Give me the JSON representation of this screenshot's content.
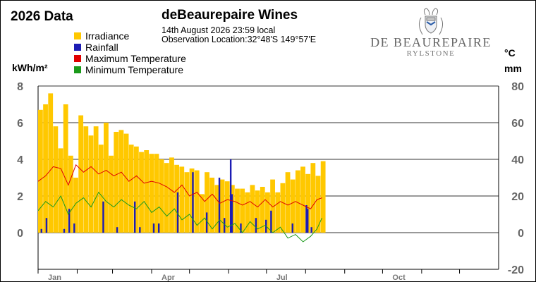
{
  "header": {
    "chart_title": "2026 Data",
    "station_name": "deBeaurepaire Wines",
    "observation_date": "14th August 2026  23:59 local",
    "observation_location": "Observation Location:32°48'S 149°57'E"
  },
  "logo": {
    "name": "DE BEAUREPAIRE",
    "sub": "RYLSTONE",
    "crest_icon": "crest-icon"
  },
  "legend": [
    {
      "label": "Irradiance",
      "color": "#ffc800"
    },
    {
      "label": "Rainfall",
      "color": "#1c1cb4"
    },
    {
      "label": "Maximum Temperature",
      "color": "#e00000"
    },
    {
      "label": "Minimum Temperature",
      "color": "#1a9a1a"
    }
  ],
  "units": {
    "left": "kWh/m²",
    "right_temp": "°C",
    "right_rain": "mm"
  },
  "chart_data": {
    "type": "bar",
    "title": "2026 Data",
    "x_axis": {
      "type": "date",
      "range": [
        "2026-01-01",
        "2026-12-31"
      ],
      "tick_labels": [
        "Jan",
        "Apr",
        "Jul",
        "Oct"
      ],
      "tick_dates": [
        "2026-01-01",
        "2026-04-01",
        "2026-07-01",
        "2026-10-01"
      ],
      "month_boundaries": [
        "2026-01-01",
        "2026-02-01",
        "2026-03-01",
        "2026-04-01",
        "2026-05-01",
        "2026-06-01",
        "2026-07-01",
        "2026-08-01",
        "2026-09-01",
        "2026-10-01",
        "2026-11-01",
        "2026-12-01"
      ]
    },
    "y_left": {
      "label": "kWh/m²",
      "range": [
        0,
        8
      ],
      "ticks": [
        0,
        2,
        4,
        6,
        8
      ]
    },
    "y_right": {
      "label": "°C / mm",
      "range": [
        -20,
        80
      ],
      "ticks": [
        -20,
        0,
        20,
        40,
        60,
        80
      ]
    },
    "grid": true,
    "legend_position": "top-left",
    "series": [
      {
        "name": "Irradiance",
        "type": "bar",
        "axis": "left",
        "color": "#ffc800",
        "points": [
          [
            "2026-01-01",
            6.7
          ],
          [
            "2026-01-05",
            7.0
          ],
          [
            "2026-01-09",
            7.6
          ],
          [
            "2026-01-13",
            5.8
          ],
          [
            "2026-01-17",
            4.6
          ],
          [
            "2026-01-21",
            7.0
          ],
          [
            "2026-01-25",
            4.2
          ],
          [
            "2026-01-29",
            3.0
          ],
          [
            "2026-02-02",
            6.4
          ],
          [
            "2026-02-06",
            5.8
          ],
          [
            "2026-02-10",
            5.3
          ],
          [
            "2026-02-14",
            5.8
          ],
          [
            "2026-02-18",
            4.8
          ],
          [
            "2026-02-22",
            6.0
          ],
          [
            "2026-02-26",
            4.2
          ],
          [
            "2026-03-02",
            5.5
          ],
          [
            "2026-03-06",
            5.6
          ],
          [
            "2026-03-10",
            5.4
          ],
          [
            "2026-03-14",
            4.8
          ],
          [
            "2026-03-18",
            4.7
          ],
          [
            "2026-03-22",
            4.4
          ],
          [
            "2026-03-26",
            4.5
          ],
          [
            "2026-03-30",
            4.3
          ],
          [
            "2026-04-03",
            4.3
          ],
          [
            "2026-04-07",
            4.0
          ],
          [
            "2026-04-11",
            3.8
          ],
          [
            "2026-04-15",
            4.1
          ],
          [
            "2026-04-19",
            3.7
          ],
          [
            "2026-04-23",
            3.6
          ],
          [
            "2026-04-27",
            3.3
          ],
          [
            "2026-05-01",
            3.5
          ],
          [
            "2026-05-05",
            3.4
          ],
          [
            "2026-05-09",
            2.1
          ],
          [
            "2026-05-13",
            3.3
          ],
          [
            "2026-05-17",
            3.0
          ],
          [
            "2026-05-21",
            2.6
          ],
          [
            "2026-05-25",
            2.9
          ],
          [
            "2026-05-29",
            2.8
          ],
          [
            "2026-06-02",
            2.6
          ],
          [
            "2026-06-06",
            2.4
          ],
          [
            "2026-06-10",
            2.4
          ],
          [
            "2026-06-14",
            2.2
          ],
          [
            "2026-06-18",
            2.6
          ],
          [
            "2026-06-22",
            2.3
          ],
          [
            "2026-06-26",
            2.5
          ],
          [
            "2026-06-30",
            2.2
          ],
          [
            "2026-07-04",
            2.9
          ],
          [
            "2026-07-08",
            2.2
          ],
          [
            "2026-07-12",
            2.7
          ],
          [
            "2026-07-16",
            3.3
          ],
          [
            "2026-07-20",
            2.9
          ],
          [
            "2026-07-24",
            3.4
          ],
          [
            "2026-07-28",
            3.6
          ],
          [
            "2026-08-01",
            3.2
          ],
          [
            "2026-08-05",
            3.8
          ],
          [
            "2026-08-09",
            3.1
          ],
          [
            "2026-08-13",
            3.9
          ]
        ]
      },
      {
        "name": "Rainfall",
        "type": "bar",
        "axis": "right",
        "color": "#1c1cb4",
        "points": [
          [
            "2026-01-03",
            2
          ],
          [
            "2026-01-07",
            8
          ],
          [
            "2026-01-21",
            2
          ],
          [
            "2026-01-25",
            13
          ],
          [
            "2026-01-29",
            5
          ],
          [
            "2026-02-21",
            17
          ],
          [
            "2026-03-04",
            3
          ],
          [
            "2026-03-18",
            17
          ],
          [
            "2026-03-22",
            3
          ],
          [
            "2026-04-02",
            5
          ],
          [
            "2026-04-06",
            5
          ],
          [
            "2026-04-21",
            22
          ],
          [
            "2026-05-03",
            33
          ],
          [
            "2026-05-14",
            11
          ],
          [
            "2026-05-24",
            30
          ],
          [
            "2026-05-28",
            8
          ],
          [
            "2026-06-02",
            40
          ],
          [
            "2026-06-03",
            21
          ],
          [
            "2026-06-10",
            5
          ],
          [
            "2026-06-22",
            8
          ],
          [
            "2026-06-30",
            7
          ],
          [
            "2026-07-04",
            12
          ],
          [
            "2026-07-21",
            5
          ],
          [
            "2026-08-01",
            15
          ],
          [
            "2026-08-02",
            13
          ],
          [
            "2026-08-05",
            3
          ]
        ]
      },
      {
        "name": "Maximum Temperature",
        "type": "line",
        "axis": "right",
        "color": "#e00000",
        "points": [
          [
            "2026-01-01",
            28
          ],
          [
            "2026-01-07",
            31
          ],
          [
            "2026-01-13",
            36
          ],
          [
            "2026-01-19",
            35
          ],
          [
            "2026-01-25",
            26
          ],
          [
            "2026-01-31",
            37
          ],
          [
            "2026-02-06",
            33
          ],
          [
            "2026-02-12",
            36
          ],
          [
            "2026-02-18",
            32
          ],
          [
            "2026-02-24",
            34
          ],
          [
            "2026-03-02",
            31
          ],
          [
            "2026-03-08",
            33
          ],
          [
            "2026-03-14",
            28
          ],
          [
            "2026-03-20",
            31
          ],
          [
            "2026-03-26",
            27
          ],
          [
            "2026-04-01",
            28
          ],
          [
            "2026-04-07",
            27
          ],
          [
            "2026-04-13",
            25
          ],
          [
            "2026-04-19",
            22
          ],
          [
            "2026-04-25",
            26
          ],
          [
            "2026-05-01",
            20
          ],
          [
            "2026-05-07",
            22
          ],
          [
            "2026-05-13",
            17
          ],
          [
            "2026-05-19",
            21
          ],
          [
            "2026-05-25",
            16
          ],
          [
            "2026-05-31",
            18
          ],
          [
            "2026-06-06",
            17
          ],
          [
            "2026-06-12",
            15
          ],
          [
            "2026-06-18",
            17
          ],
          [
            "2026-06-24",
            14
          ],
          [
            "2026-06-30",
            18
          ],
          [
            "2026-07-06",
            14
          ],
          [
            "2026-07-12",
            17
          ],
          [
            "2026-07-18",
            15
          ],
          [
            "2026-07-24",
            17
          ],
          [
            "2026-07-30",
            15
          ],
          [
            "2026-08-05",
            13
          ],
          [
            "2026-08-10",
            18
          ],
          [
            "2026-08-14",
            19
          ]
        ]
      },
      {
        "name": "Minimum Temperature",
        "type": "line",
        "axis": "right",
        "color": "#1a9a1a",
        "points": [
          [
            "2026-01-01",
            12
          ],
          [
            "2026-01-07",
            17
          ],
          [
            "2026-01-13",
            14
          ],
          [
            "2026-01-19",
            20
          ],
          [
            "2026-01-25",
            10
          ],
          [
            "2026-01-31",
            16
          ],
          [
            "2026-02-06",
            19
          ],
          [
            "2026-02-12",
            14
          ],
          [
            "2026-02-18",
            22
          ],
          [
            "2026-02-24",
            17
          ],
          [
            "2026-03-02",
            14
          ],
          [
            "2026-03-08",
            18
          ],
          [
            "2026-03-14",
            15
          ],
          [
            "2026-03-20",
            13
          ],
          [
            "2026-03-26",
            17
          ],
          [
            "2026-04-01",
            11
          ],
          [
            "2026-04-07",
            14
          ],
          [
            "2026-04-13",
            9
          ],
          [
            "2026-04-19",
            13
          ],
          [
            "2026-04-25",
            7
          ],
          [
            "2026-05-01",
            10
          ],
          [
            "2026-05-07",
            4
          ],
          [
            "2026-05-13",
            8
          ],
          [
            "2026-05-19",
            2
          ],
          [
            "2026-05-25",
            7
          ],
          [
            "2026-05-31",
            3
          ],
          [
            "2026-06-06",
            5
          ],
          [
            "2026-06-12",
            0
          ],
          [
            "2026-06-18",
            6
          ],
          [
            "2026-06-24",
            2
          ],
          [
            "2026-06-30",
            4
          ],
          [
            "2026-07-06",
            0
          ],
          [
            "2026-07-12",
            3
          ],
          [
            "2026-07-18",
            -3
          ],
          [
            "2026-07-24",
            -1
          ],
          [
            "2026-07-30",
            -5
          ],
          [
            "2026-08-05",
            -2
          ],
          [
            "2026-08-10",
            2
          ],
          [
            "2026-08-14",
            8
          ]
        ]
      }
    ]
  }
}
